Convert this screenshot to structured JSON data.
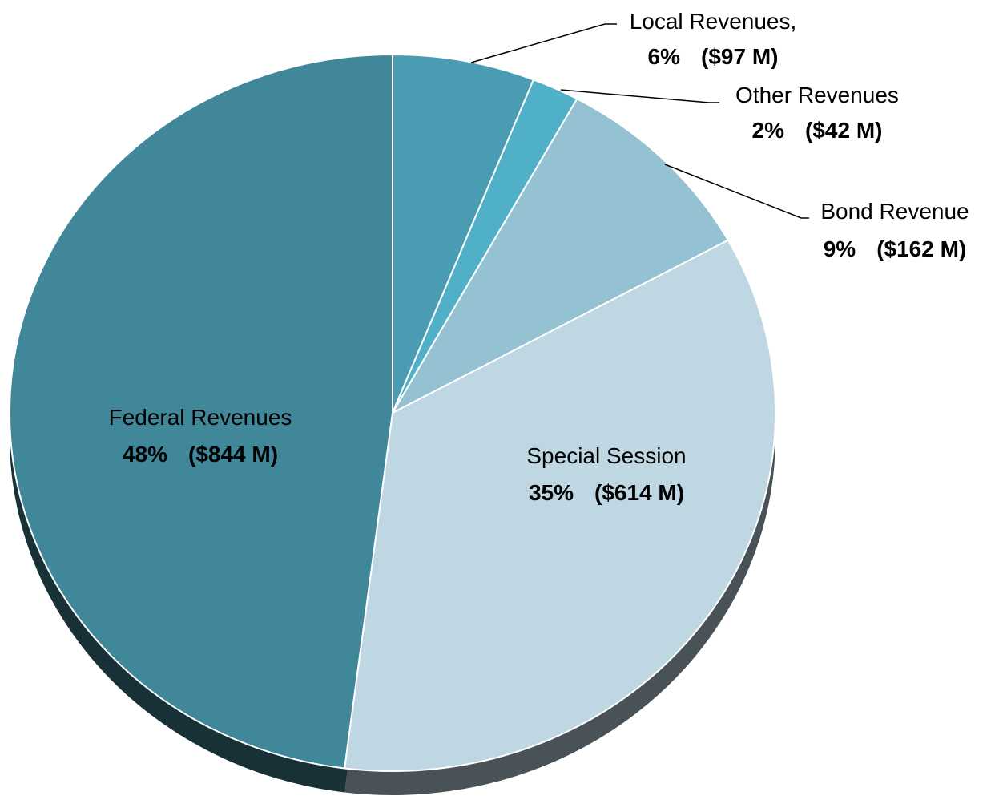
{
  "chart_data": {
    "type": "pie",
    "categories": [
      "Local Revenues,",
      "Other Revenues",
      "Bond Revenue",
      "Special Session",
      "Federal Revenues"
    ],
    "values": [
      6,
      2,
      9,
      35,
      48
    ],
    "value_labels": [
      "6%",
      "2%",
      "9%",
      "35%",
      "48%"
    ],
    "amount_labels": [
      "($97 M)",
      "($42 M)",
      "($162 M)",
      "($614 M)",
      "($844 M)"
    ],
    "colors": [
      "#4a9cb3",
      "#4fb0c8",
      "#95c2d3",
      "#bfd7e2",
      "#41879a"
    ]
  }
}
